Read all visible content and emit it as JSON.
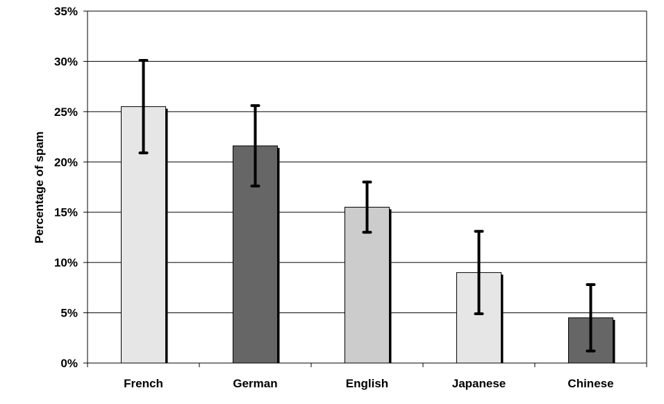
{
  "chart_data": {
    "type": "bar",
    "title": "",
    "xlabel": "",
    "ylabel": "Percentage of spam",
    "ylim": [
      0,
      35
    ],
    "yticks": [
      0,
      5,
      10,
      15,
      20,
      25,
      30,
      35
    ],
    "ytick_labels": [
      "0%",
      "5%",
      "10%",
      "15%",
      "20%",
      "25%",
      "30%",
      "35%"
    ],
    "grid": true,
    "legend": "none",
    "categories": [
      "French",
      "German",
      "English",
      "Japanese",
      "Chinese"
    ],
    "values": [
      25.5,
      21.6,
      15.5,
      9.0,
      4.5
    ],
    "error_low": [
      20.9,
      17.6,
      13.0,
      4.9,
      1.2
    ],
    "error_high": [
      30.1,
      25.6,
      18.0,
      13.1,
      7.8
    ],
    "colors": [
      "#e6e6e6",
      "#666666",
      "#cccccc",
      "#e6e6e6",
      "#666666"
    ],
    "shadow_color": "#000000",
    "error_bar_color": "#000000"
  }
}
